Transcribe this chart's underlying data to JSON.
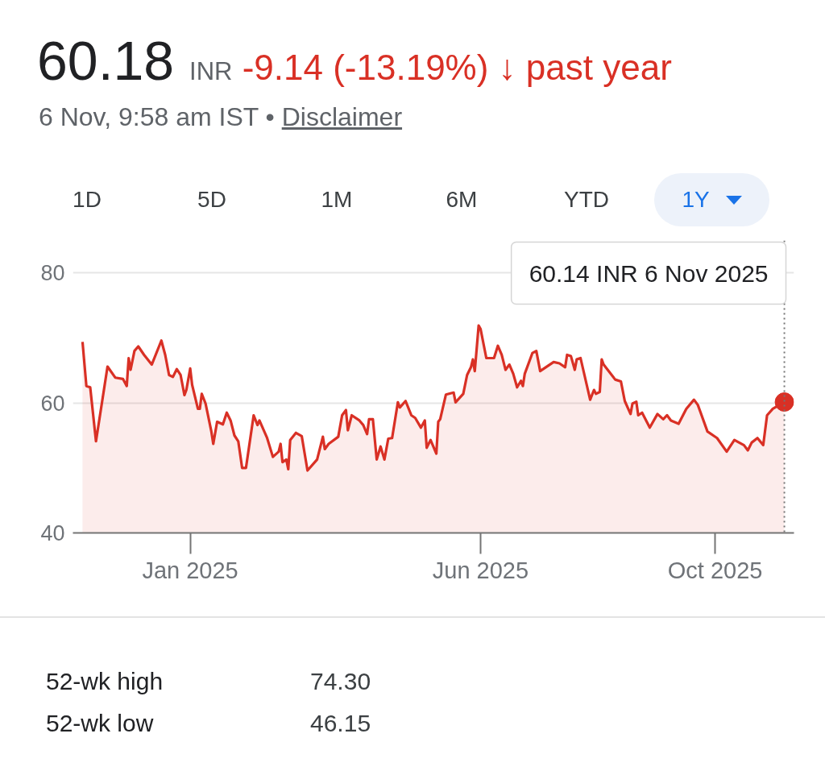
{
  "chart_data": [
    {
      "type": "other",
      "title": "60.18 INR -9.14 (-13.19%) ↓ past year",
      "subtitle": "6 Nov, 9:58 am IST • Disclaimer",
      "annotations": [
        "1D",
        "5D",
        "1M",
        "6M",
        "YTD",
        "1Y"
      ]
    },
    {
      "type": "area",
      "xlim": [
        "2024-11-01",
        "2025-11-11"
      ],
      "ylim": [
        40,
        85
      ],
      "xticks": [
        {
          "value": "2025-01-01",
          "label": "Jan 2025"
        },
        {
          "value": "2025-06-01",
          "label": "Jun 2025"
        },
        {
          "value": "2025-10-01",
          "label": "Oct 2025"
        }
      ],
      "yticks": [
        40,
        60,
        80
      ],
      "grid": "y",
      "x": [
        "2024-11-06",
        "2024-11-08",
        "2024-11-10",
        "2024-11-13",
        "2024-11-19",
        "2024-11-23",
        "2024-11-27",
        "2024-11-29",
        "2024-11-30",
        "2024-12-01",
        "2024-12-03",
        "2024-12-05",
        "2024-12-08",
        "2024-12-12",
        "2024-12-17",
        "2024-12-19",
        "2024-12-21",
        "2024-12-23",
        "2024-12-25",
        "2024-12-27",
        "2024-12-29",
        "2024-12-30",
        "2025-01-01",
        "2025-01-02",
        "2025-01-05",
        "2025-01-06",
        "2025-01-07",
        "2025-01-09",
        "2025-01-12",
        "2025-01-13",
        "2025-01-15",
        "2025-01-18",
        "2025-01-20",
        "2025-01-22",
        "2025-01-24",
        "2025-01-26",
        "2025-01-28",
        "2025-01-30",
        "2025-02-03",
        "2025-02-05",
        "2025-02-06",
        "2025-02-10",
        "2025-02-13",
        "2025-02-16",
        "2025-02-17",
        "2025-02-18",
        "2025-02-20",
        "2025-02-21",
        "2025-02-22",
        "2025-02-25",
        "2025-02-28",
        "2025-03-03",
        "2025-03-08",
        "2025-03-11",
        "2025-03-12",
        "2025-03-14",
        "2025-03-19",
        "2025-03-21",
        "2025-03-23",
        "2025-03-24",
        "2025-03-26",
        "2025-03-30",
        "2025-04-01",
        "2025-04-03",
        "2025-04-04",
        "2025-04-06",
        "2025-04-08",
        "2025-04-10",
        "2025-04-12",
        "2025-04-14",
        "2025-04-16",
        "2025-04-19",
        "2025-04-20",
        "2025-04-23",
        "2025-04-26",
        "2025-04-28",
        "2025-05-01",
        "2025-05-03",
        "2025-05-04",
        "2025-05-06",
        "2025-05-09",
        "2025-05-10",
        "2025-05-11",
        "2025-05-14",
        "2025-05-18",
        "2025-05-19",
        "2025-05-23",
        "2025-05-25",
        "2025-05-27",
        "2025-05-28",
        "2025-05-29",
        "2025-05-31",
        "2025-06-01",
        "2025-06-04",
        "2025-06-08",
        "2025-06-10",
        "2025-06-12",
        "2025-06-14",
        "2025-06-16",
        "2025-06-18",
        "2025-06-20",
        "2025-06-22",
        "2025-06-23",
        "2025-06-24",
        "2025-06-28",
        "2025-06-30",
        "2025-07-02",
        "2025-07-09",
        "2025-07-12",
        "2025-07-15",
        "2025-07-16",
        "2025-07-18",
        "2025-07-20",
        "2025-07-21",
        "2025-07-23",
        "2025-07-28",
        "2025-07-30",
        "2025-07-31",
        "2025-08-02",
        "2025-08-03",
        "2025-08-04",
        "2025-08-10",
        "2025-08-13",
        "2025-08-15",
        "2025-08-18",
        "2025-08-19",
        "2025-08-21",
        "2025-08-22",
        "2025-08-24",
        "2025-08-28",
        "2025-09-01",
        "2025-09-04",
        "2025-09-06",
        "2025-09-08",
        "2025-09-12",
        "2025-09-16",
        "2025-09-20",
        "2025-09-22",
        "2025-09-27",
        "2025-10-02",
        "2025-10-07",
        "2025-10-11",
        "2025-10-16",
        "2025-10-18",
        "2025-10-20",
        "2025-10-23",
        "2025-10-26",
        "2025-10-28",
        "2025-10-31",
        "2025-11-06"
      ],
      "series": [
        {
          "color": "#d93025",
          "values": [
            69.4,
            62.6,
            62.4,
            54.1,
            65.6,
            63.9,
            63.7,
            62.6,
            66.9,
            65.1,
            68.0,
            68.7,
            67.4,
            65.9,
            69.6,
            67.4,
            64.3,
            64.0,
            65.2,
            64.3,
            61.2,
            62.0,
            65.3,
            62.8,
            59.1,
            59.1,
            61.4,
            59.9,
            55.6,
            53.7,
            57.1,
            56.7,
            58.5,
            57.3,
            55.0,
            54.1,
            50.0,
            50.0,
            58.1,
            56.6,
            57.3,
            54.6,
            51.7,
            52.5,
            53.7,
            50.9,
            51.3,
            49.8,
            54.3,
            55.4,
            54.9,
            49.6,
            51.3,
            54.8,
            52.9,
            53.7,
            54.8,
            58.1,
            58.9,
            55.8,
            58.1,
            57.3,
            56.6,
            55.2,
            57.5,
            57.5,
            51.3,
            53.3,
            51.3,
            54.5,
            54.6,
            60.1,
            59.3,
            60.3,
            58.1,
            57.7,
            56.2,
            57.3,
            53.1,
            54.3,
            52.2,
            57.1,
            57.5,
            61.3,
            61.6,
            60.1,
            61.4,
            64.3,
            65.5,
            66.7,
            64.9,
            71.9,
            71.4,
            66.9,
            66.9,
            68.8,
            67.4,
            65.1,
            65.9,
            64.5,
            62.4,
            63.4,
            62.6,
            64.5,
            67.7,
            68.0,
            64.9,
            66.3,
            66.1,
            65.5,
            67.4,
            67.2,
            65.1,
            66.7,
            66.9,
            60.5,
            62.0,
            61.4,
            61.7,
            66.7,
            65.9,
            63.6,
            63.3,
            60.3,
            58.3,
            59.9,
            60.2,
            58.1,
            58.5,
            56.2,
            58.3,
            57.5,
            58.1,
            57.3,
            56.8,
            59.1,
            60.5,
            59.7,
            55.6,
            54.6,
            52.5,
            54.3,
            53.5,
            52.7,
            53.9,
            54.6,
            53.5,
            58.1,
            59.1,
            60.14
          ]
        },
        {
          "type": "scatter",
          "x": [
            "2025-11-06"
          ],
          "values": [
            60.14
          ],
          "color": "#d93025",
          "marker": "circle"
        }
      ],
      "ref_lines": [
        {
          "axis": "x",
          "value": "2025-11-06",
          "line_style": "dotted",
          "color": "#757575"
        }
      ],
      "annotations": [
        "60.14 INR 6 Nov 2025"
      ]
    },
    {
      "type": "other",
      "annotations": [
        "52-wk high",
        "74.30",
        "52-wk low",
        "46.15"
      ]
    }
  ]
}
